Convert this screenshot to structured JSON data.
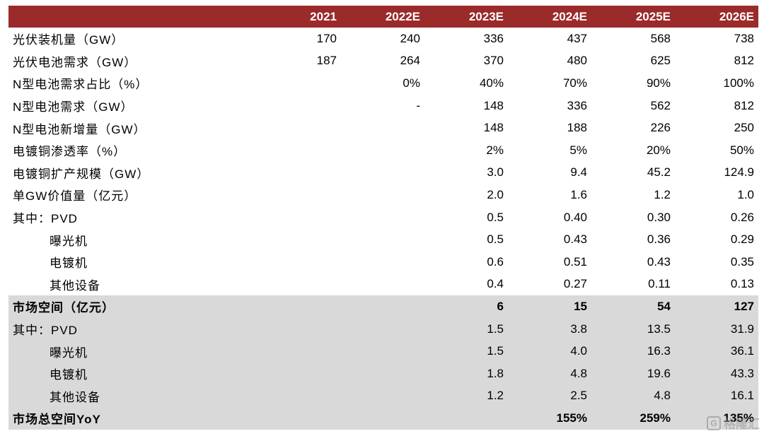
{
  "header": {
    "label": "",
    "years": [
      "2021",
      "2022E",
      "2023E",
      "2024E",
      "2025E",
      "2026E"
    ]
  },
  "rows": [
    {
      "label": "光伏装机量（GW）",
      "values": [
        "170",
        "240",
        "336",
        "437",
        "568",
        "738"
      ]
    },
    {
      "label": "光伏电池需求（GW）",
      "values": [
        "187",
        "264",
        "370",
        "480",
        "625",
        "812"
      ]
    },
    {
      "label": "N型电池需求占比（%）",
      "values": [
        "",
        "0%",
        "40%",
        "70%",
        "90%",
        "100%"
      ]
    },
    {
      "label": "N型电池需求（GW）",
      "values": [
        "",
        "-",
        "148",
        "336",
        "562",
        "812"
      ]
    },
    {
      "label": "N型电池新增量（GW）",
      "values": [
        "",
        "",
        "148",
        "188",
        "226",
        "250"
      ]
    },
    {
      "label": "电镀铜渗透率（%）",
      "values": [
        "",
        "",
        "2%",
        "5%",
        "20%",
        "50%"
      ]
    },
    {
      "label": "电镀铜扩产规模（GW）",
      "values": [
        "",
        "",
        "3.0",
        "9.4",
        "45.2",
        "124.9"
      ]
    },
    {
      "label": "单GW价值量（亿元）",
      "values": [
        "",
        "",
        "2.0",
        "1.6",
        "1.2",
        "1.0"
      ]
    },
    {
      "label": "其中：PVD",
      "values": [
        "",
        "",
        "0.5",
        "0.40",
        "0.30",
        "0.26"
      ]
    },
    {
      "label": "曝光机",
      "values": [
        "",
        "",
        "0.5",
        "0.43",
        "0.36",
        "0.29"
      ]
    },
    {
      "label": "电镀机",
      "values": [
        "",
        "",
        "0.6",
        "0.51",
        "0.43",
        "0.35"
      ]
    },
    {
      "label": "其他设备",
      "values": [
        "",
        "",
        "0.4",
        "0.27",
        "0.11",
        "0.13"
      ]
    },
    {
      "label": "市场空间（亿元）",
      "values": [
        "",
        "",
        "6",
        "15",
        "54",
        "127"
      ]
    },
    {
      "label": "其中：PVD",
      "values": [
        "",
        "",
        "1.5",
        "3.8",
        "13.5",
        "31.9"
      ]
    },
    {
      "label": "曝光机",
      "values": [
        "",
        "",
        "1.5",
        "4.0",
        "16.3",
        "36.1"
      ]
    },
    {
      "label": "电镀机",
      "values": [
        "",
        "",
        "1.8",
        "4.8",
        "19.6",
        "43.3"
      ]
    },
    {
      "label": "其他设备",
      "values": [
        "",
        "",
        "1.2",
        "2.5",
        "4.8",
        "16.1"
      ]
    },
    {
      "label": "市场总空间YoY",
      "values": [
        "",
        "",
        "",
        "155%",
        "259%",
        "135%"
      ]
    }
  ],
  "watermark": {
    "icon": "gelonghui-logo-icon",
    "text": "格隆汇"
  },
  "colors": {
    "header_bg": "#9b2a2b",
    "header_text": "#ffffff",
    "shaded_bg": "#d9d9d9"
  }
}
